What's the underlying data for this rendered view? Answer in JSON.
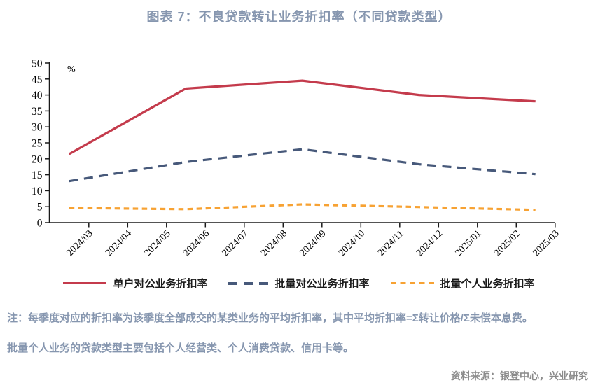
{
  "title": "图表 7：不良贷款转让业务折扣率（不同贷款类型）",
  "chart_data": {
    "type": "line",
    "title": "图表 7：不良贷款转让业务折扣率（不同贷款类型）",
    "unit_label": "%",
    "x_tick_labels": [
      "2024/03",
      "2024/04",
      "2024/05",
      "2024/06",
      "2024/07",
      "2024/08",
      "2024/09",
      "2024/10",
      "2024/11",
      "2024/12",
      "2025/01",
      "2025/02",
      "2025/03"
    ],
    "ylim": [
      0,
      50
    ],
    "y_tick_step": 5,
    "grid": false,
    "legend_position": "bottom",
    "series": [
      {
        "name": "单户对公业务折扣率",
        "color": "#C43B4C",
        "style": "solid",
        "x": [
          "2024/03",
          "2024/06",
          "2024/09",
          "2024/12",
          "2025/03"
        ],
        "values": [
          21.5,
          42,
          44.5,
          40,
          38
        ]
      },
      {
        "name": "批量对公业务折扣率",
        "color": "#47597A",
        "style": "long-dash",
        "x": [
          "2024/03",
          "2024/06",
          "2024/09",
          "2024/12",
          "2025/03"
        ],
        "values": [
          13,
          19,
          23,
          18.3,
          15.2
        ]
      },
      {
        "name": "批量个人业务折扣率",
        "color": "#F7A233",
        "style": "short-dash",
        "x": [
          "2024/03",
          "2024/06",
          "2024/09",
          "2024/12",
          "2025/03"
        ],
        "values": [
          4.6,
          4.2,
          5.7,
          4.9,
          4.0
        ]
      }
    ]
  },
  "notes": {
    "line1": "注：每季度对应的折扣率为该季度全部成交的某类业务的平均折扣率，其中平均折扣率=Σ转让价格/Σ未偿本息费。",
    "line2": "批量个人业务的贷款类型主要包括个人经营类、个人消费贷款、信用卡等。"
  },
  "source": "资料来源：银登中心，兴业研究",
  "colors": {
    "title": "#8696AF",
    "note": "#8696AF",
    "source": "#8A8A8A",
    "axis": "#1a1a1a"
  }
}
